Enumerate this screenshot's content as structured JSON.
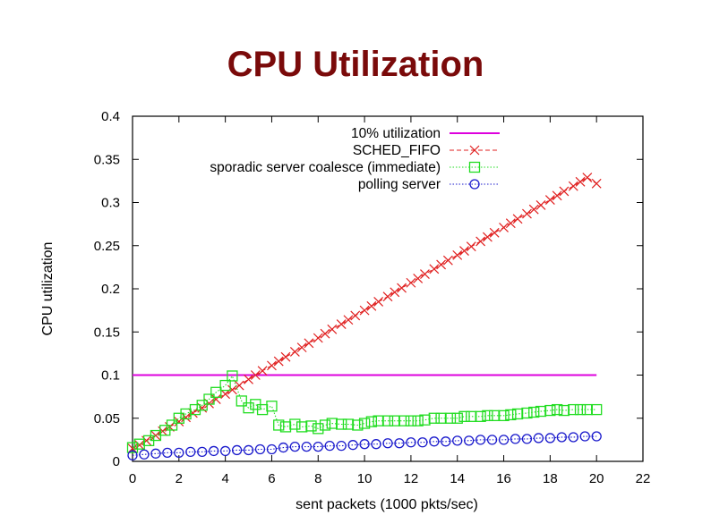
{
  "chart_data": {
    "type": "line",
    "title": "CPU Utilization",
    "xlabel": "sent packets (1000 pkts/sec)",
    "ylabel": "CPU utilization",
    "xlim": [
      0,
      22
    ],
    "ylim": [
      0,
      0.4
    ],
    "xticks": [
      "0",
      "2",
      "4",
      "6",
      "8",
      "10",
      "12",
      "14",
      "16",
      "18",
      "20",
      "22"
    ],
    "yticks": [
      "0",
      "0.05",
      "0.1",
      "0.15",
      "0.2",
      "0.25",
      "0.3",
      "0.35",
      "0.4"
    ],
    "grid": false,
    "legend_position": "top-right",
    "series": [
      {
        "name": "10% utilization",
        "color": "#dd00dd",
        "style": "solid",
        "marker": "none",
        "x": [
          0,
          20
        ],
        "y": [
          0.1,
          0.1
        ]
      },
      {
        "name": "SCHED_FIFO",
        "color": "#e02020",
        "style": "dashed",
        "marker": "x",
        "x": [
          0,
          0.3,
          0.6,
          1.0,
          1.3,
          1.6,
          2.0,
          2.3,
          2.6,
          3.0,
          3.3,
          3.6,
          4.0,
          4.3,
          4.6,
          5.0,
          5.3,
          5.6,
          6.0,
          6.3,
          6.6,
          7.0,
          7.3,
          7.6,
          8.0,
          8.3,
          8.6,
          9.0,
          9.3,
          9.6,
          10.0,
          10.3,
          10.6,
          11.0,
          11.3,
          11.6,
          12.0,
          12.3,
          12.6,
          13.0,
          13.3,
          13.6,
          14.0,
          14.3,
          14.6,
          15.0,
          15.3,
          15.6,
          16.0,
          16.3,
          16.6,
          17.0,
          17.3,
          17.6,
          18.0,
          18.3,
          18.6,
          19.0,
          19.3,
          19.6,
          20.0
        ],
        "y": [
          0.015,
          0.019,
          0.024,
          0.03,
          0.035,
          0.04,
          0.046,
          0.051,
          0.056,
          0.062,
          0.067,
          0.072,
          0.078,
          0.083,
          0.088,
          0.095,
          0.1,
          0.105,
          0.111,
          0.116,
          0.121,
          0.127,
          0.132,
          0.137,
          0.143,
          0.148,
          0.153,
          0.159,
          0.164,
          0.169,
          0.175,
          0.18,
          0.185,
          0.191,
          0.196,
          0.201,
          0.207,
          0.212,
          0.217,
          0.223,
          0.228,
          0.233,
          0.239,
          0.244,
          0.249,
          0.255,
          0.26,
          0.265,
          0.271,
          0.276,
          0.281,
          0.287,
          0.292,
          0.297,
          0.303,
          0.308,
          0.313,
          0.319,
          0.324,
          0.329,
          0.322
        ]
      },
      {
        "name": "sporadic server coalesce (immediate)",
        "color": "#22dd22",
        "style": "dotted",
        "marker": "square",
        "x": [
          0,
          0.3,
          0.7,
          1.0,
          1.4,
          1.7,
          2.0,
          2.3,
          2.7,
          3.0,
          3.3,
          3.6,
          4.0,
          4.3,
          4.7,
          5.0,
          5.3,
          5.6,
          6.0,
          6.3,
          6.6,
          7.0,
          7.3,
          7.7,
          8.0,
          8.3,
          8.6,
          9.0,
          9.3,
          9.7,
          10.0,
          10.3,
          10.6,
          11.0,
          11.3,
          11.7,
          12.0,
          12.3,
          12.6,
          13.0,
          13.3,
          13.7,
          14.0,
          14.3,
          14.6,
          15.0,
          15.3,
          15.6,
          16.0,
          16.3,
          16.6,
          17.0,
          17.3,
          17.6,
          18.0,
          18.3,
          18.6,
          19.0,
          19.3,
          19.6,
          20.0
        ],
        "y": [
          0.016,
          0.02,
          0.024,
          0.03,
          0.036,
          0.042,
          0.05,
          0.055,
          0.06,
          0.065,
          0.072,
          0.08,
          0.088,
          0.099,
          0.07,
          0.062,
          0.066,
          0.06,
          0.064,
          0.042,
          0.04,
          0.043,
          0.04,
          0.041,
          0.038,
          0.042,
          0.044,
          0.043,
          0.043,
          0.042,
          0.044,
          0.046,
          0.047,
          0.047,
          0.047,
          0.047,
          0.047,
          0.047,
          0.048,
          0.05,
          0.05,
          0.05,
          0.05,
          0.052,
          0.052,
          0.052,
          0.053,
          0.053,
          0.053,
          0.054,
          0.055,
          0.056,
          0.057,
          0.058,
          0.059,
          0.06,
          0.059,
          0.06,
          0.06,
          0.06,
          0.06
        ]
      },
      {
        "name": "polling server",
        "color": "#1a1acc",
        "style": "dotted",
        "marker": "circle",
        "x": [
          0,
          0.5,
          1.0,
          1.5,
          2.0,
          2.5,
          3.0,
          3.5,
          4.0,
          4.5,
          5.0,
          5.5,
          6.0,
          6.5,
          7.0,
          7.5,
          8.0,
          8.5,
          9.0,
          9.5,
          10.0,
          10.5,
          11.0,
          11.5,
          12.0,
          12.5,
          13.0,
          13.5,
          14.0,
          14.5,
          15.0,
          15.5,
          16.0,
          16.5,
          17.0,
          17.5,
          18.0,
          18.5,
          19.0,
          19.5,
          20.0
        ],
        "y": [
          0.007,
          0.008,
          0.009,
          0.01,
          0.01,
          0.011,
          0.011,
          0.012,
          0.012,
          0.013,
          0.013,
          0.014,
          0.014,
          0.016,
          0.017,
          0.017,
          0.017,
          0.018,
          0.018,
          0.019,
          0.02,
          0.02,
          0.021,
          0.021,
          0.022,
          0.022,
          0.023,
          0.023,
          0.024,
          0.024,
          0.025,
          0.025,
          0.025,
          0.026,
          0.026,
          0.027,
          0.027,
          0.028,
          0.028,
          0.029,
          0.029
        ]
      }
    ]
  }
}
